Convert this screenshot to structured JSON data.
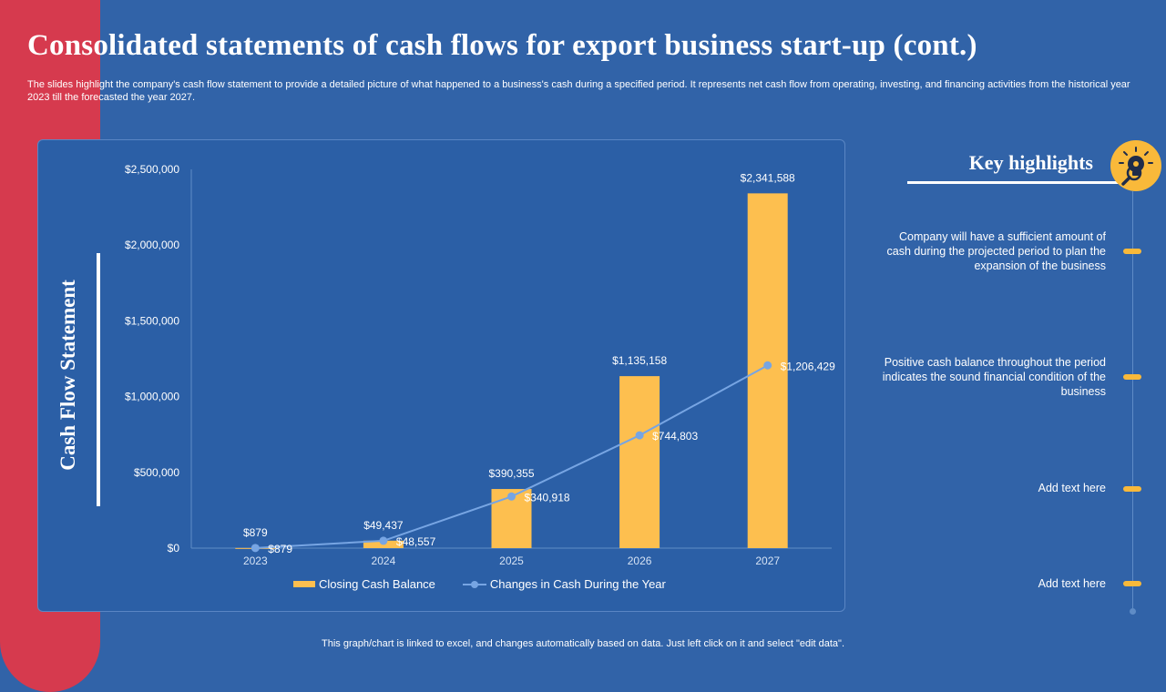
{
  "slide": {
    "title": "Consolidated statements of cash flows for export business start-up (cont.)",
    "subtitle": "The slides highlight the company's cash flow statement to provide a detailed picture of what happened to a business's cash during a specified period. It represents net cash flow from operating, investing, and financing activities from the historical year 2023 till the forecasted the year 2027.",
    "footnote": "This graph/chart is linked to excel, and changes automatically based on data. Just left click on it and select \"edit data\"."
  },
  "chart_panel": {
    "vertical_title": "Cash Flow Statement"
  },
  "chart_data": {
    "type": "bar",
    "categories": [
      "2023",
      "2024",
      "2025",
      "2026",
      "2027"
    ],
    "series": [
      {
        "name": "Closing Cash Balance",
        "type": "bar",
        "values": [
          879,
          49437,
          390355,
          1135158,
          2341588
        ],
        "labels": [
          "$879",
          "$49,437",
          "$390,355",
          "$1,135,158",
          "$2,341,588"
        ],
        "color": "#fdbf4f"
      },
      {
        "name": "Changes in Cash During the Year",
        "type": "line",
        "values": [
          879,
          48557,
          340918,
          744803,
          1206429
        ],
        "labels": [
          "$879",
          "$48,557",
          "$340,918",
          "$744,803",
          "$1,206,429"
        ],
        "color": "#77a5e3"
      }
    ],
    "ylim": [
      0,
      2500000
    ],
    "yticks": [
      0,
      500000,
      1000000,
      1500000,
      2000000,
      2500000
    ],
    "ytick_labels": [
      "$0",
      "$500,000",
      "$1,000,000",
      "$1,500,000",
      "$2,000,000",
      "$2,500,000"
    ],
    "grid": false,
    "legend_position": "bottom"
  },
  "key_highlights": {
    "title": "Key highlights",
    "items": [
      "Company will have a sufficient amount of cash during the projected period to plan the expansion of the business",
      "Positive cash balance throughout the period indicates the sound financial condition of the business",
      "Add text here",
      "Add text here"
    ]
  },
  "colors": {
    "background": "#3163a8",
    "accent_red": "#d63a4e",
    "accent_yellow": "#f9b93a"
  },
  "icons": {
    "highlight_icon": "lightbulb-magnifier-icon"
  }
}
